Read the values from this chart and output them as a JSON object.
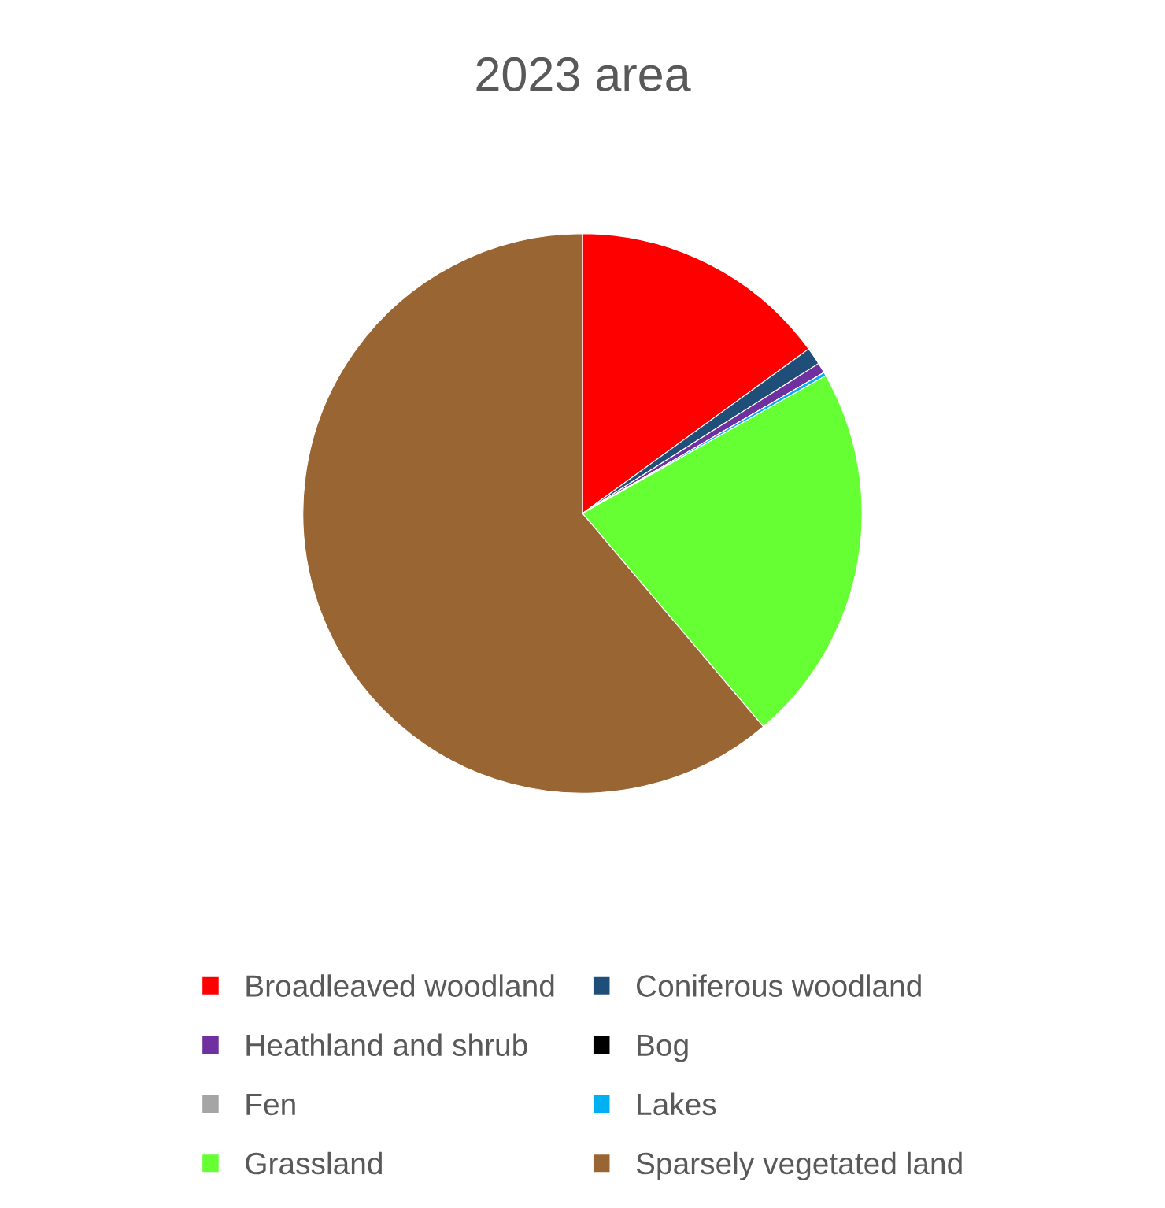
{
  "chart_data": {
    "type": "pie",
    "title": "2023 area",
    "categories": [
      "Broadleaved woodland",
      "Coniferous woodland",
      "Heathland and shrub",
      "Bog",
      "Fen",
      "Lakes",
      "Grassland",
      "Sparsely vegetated land"
    ],
    "values": [
      15,
      1,
      0.6,
      0,
      0,
      0.2,
      22,
      61.2
    ],
    "colors": [
      "#ff0000",
      "#1f4e79",
      "#7030a0",
      "#000000",
      "#a5a5a5",
      "#00b0f0",
      "#66ff33",
      "#996633"
    ],
    "legend": "bottom"
  }
}
